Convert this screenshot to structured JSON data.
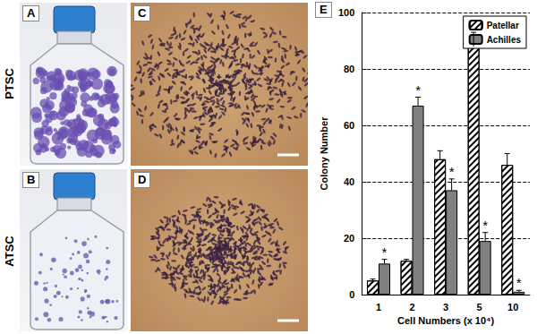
{
  "chart_data": {
    "type": "bar",
    "categories": [
      "1",
      "2",
      "3",
      "5",
      "10"
    ],
    "x_label": "Cell Numbers (x 10⁴)",
    "y_label": "Colony Number",
    "ylim": [
      0,
      100
    ],
    "yticks": [
      0,
      20,
      40,
      60,
      80,
      100
    ],
    "grid": true,
    "legend": "upper right",
    "series": [
      {
        "name": "Patellar",
        "color": "#ffffff",
        "values": [
          5,
          12,
          48,
          88,
          46
        ],
        "errors": [
          0.5,
          0.5,
          3,
          5,
          4
        ]
      },
      {
        "name": "Achilles",
        "color": "#808080",
        "values": [
          11,
          67,
          37,
          19,
          1
        ],
        "errors": [
          1.5,
          3,
          4,
          3,
          0.5
        ],
        "annotations": [
          "*",
          "*",
          "*",
          "*",
          "*"
        ]
      }
    ]
  },
  "rows": [
    "PTSC",
    "ATSC"
  ],
  "panels": [
    {
      "label": "A"
    },
    {
      "label": "B"
    },
    {
      "label": "C"
    },
    {
      "label": "D"
    },
    {
      "label": "E"
    }
  ]
}
